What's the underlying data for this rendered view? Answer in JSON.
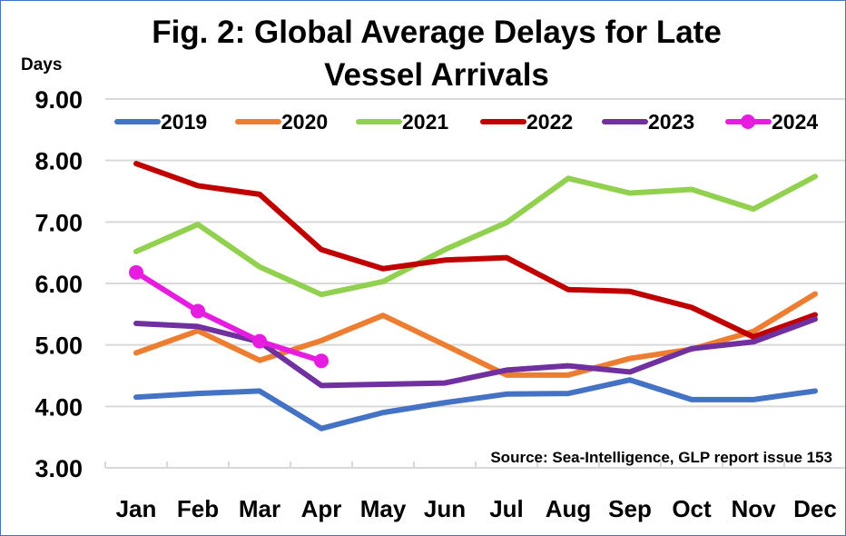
{
  "chart_data": {
    "type": "line",
    "title": "Fig. 2: Global Average Delays for Late Vessel Arrivals",
    "title_lines": [
      "Fig. 2: Global Average Delays for Late",
      "Vessel Arrivals"
    ],
    "xlabel": "",
    "ylabel": "Days",
    "ylim": [
      3.0,
      9.0
    ],
    "yticks": [
      "3.00",
      "4.00",
      "5.00",
      "6.00",
      "7.00",
      "8.00",
      "9.00"
    ],
    "grid": true,
    "legend_position": "top",
    "categories": [
      "Jan",
      "Feb",
      "Mar",
      "Apr",
      "May",
      "Jun",
      "Jul",
      "Aug",
      "Sep",
      "Oct",
      "Nov",
      "Dec"
    ],
    "series": [
      {
        "name": "2019",
        "color": "#4472C4",
        "markers": false,
        "values": [
          4.15,
          4.21,
          4.25,
          3.64,
          3.9,
          4.06,
          4.2,
          4.21,
          4.43,
          4.11,
          4.11,
          4.25
        ]
      },
      {
        "name": "2020",
        "color": "#ED7D31",
        "markers": false,
        "values": [
          4.87,
          5.23,
          4.75,
          5.07,
          5.48,
          5.0,
          4.51,
          4.51,
          4.78,
          4.93,
          5.22,
          5.83
        ]
      },
      {
        "name": "2021",
        "color": "#92D050",
        "markers": false,
        "values": [
          6.52,
          6.96,
          6.27,
          5.82,
          6.03,
          6.55,
          6.99,
          7.71,
          7.47,
          7.53,
          7.21,
          7.74
        ]
      },
      {
        "name": "2022",
        "color": "#C00000",
        "markers": false,
        "values": [
          7.95,
          7.59,
          7.45,
          6.55,
          6.24,
          6.38,
          6.42,
          5.9,
          5.87,
          5.61,
          5.13,
          5.49
        ]
      },
      {
        "name": "2023",
        "color": "#7030A0",
        "markers": false,
        "values": [
          5.35,
          5.3,
          5.05,
          4.34,
          4.36,
          4.38,
          4.59,
          4.66,
          4.56,
          4.94,
          5.05,
          5.42
        ]
      },
      {
        "name": "2024",
        "color": "#E61CE0",
        "markers": true,
        "values": [
          6.18,
          5.55,
          5.06,
          4.74
        ]
      }
    ],
    "annotations": [
      "Source: Sea-Intelligence, GLP report issue 153"
    ]
  }
}
